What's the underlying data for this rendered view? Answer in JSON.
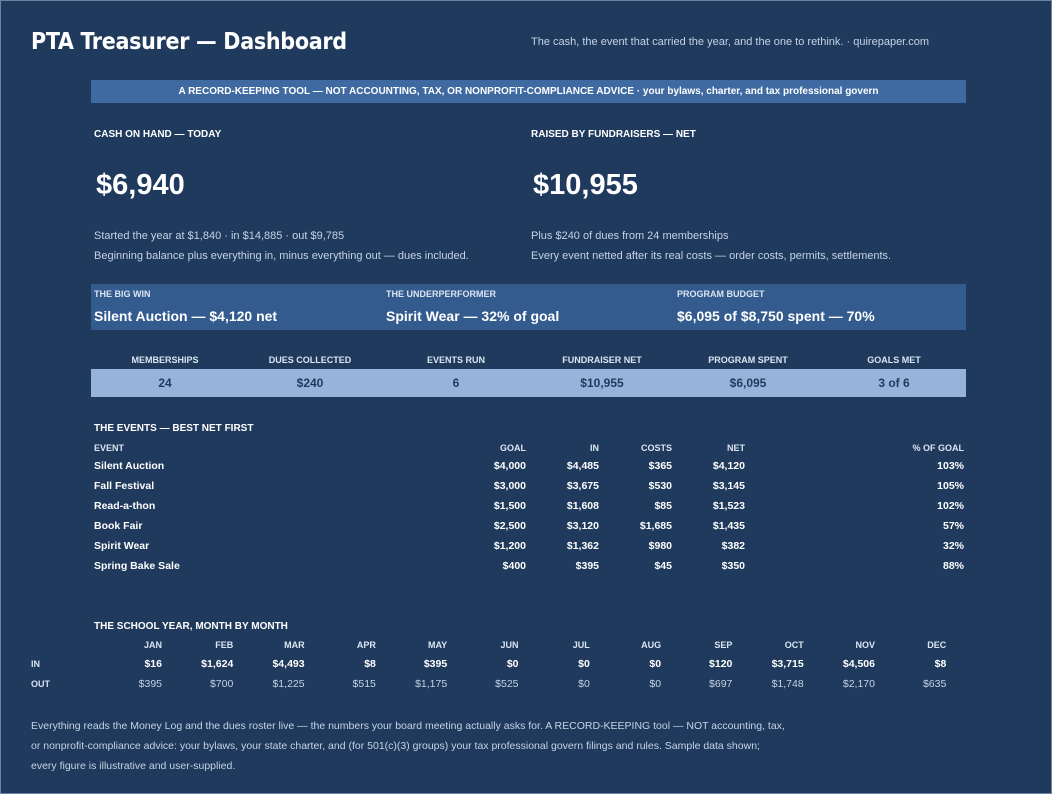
{
  "header": {
    "title": "PTA Treasurer — Dashboard",
    "tagline": "The cash, the event that carried the year, and the one to rethink.  ·  quirepaper.com"
  },
  "banner": {
    "text": "A RECORD-KEEPING TOOL — NOT ACCOUNTING, TAX, OR NONPROFIT-COMPLIANCE ADVICE  ·  your bylaws, charter, and tax professional govern"
  },
  "kpis": {
    "cash": {
      "label": "CASH ON HAND — TODAY",
      "value": "$6,940",
      "note1": "Started the year at $1,840  ·  in $14,885  ·  out $9,785",
      "note2": "Beginning balance plus everything in, minus everything out — dues included."
    },
    "raised": {
      "label": "RAISED BY FUNDRAISERS — NET",
      "value": "$10,955",
      "note1": "Plus $240 of dues from 24 memberships",
      "note2": "Every event netted after its real costs — order costs, permits, settlements."
    }
  },
  "highlights": [
    {
      "label": "THE BIG WIN",
      "value": "Silent Auction — $4,120 net"
    },
    {
      "label": "THE UNDERPERFORMER",
      "value": "Spirit Wear — 32% of goal"
    },
    {
      "label": "PROGRAM BUDGET",
      "value": "$6,095 of $8,750 spent — 70%"
    }
  ],
  "stats": [
    {
      "label": "MEMBERSHIPS",
      "value": "24"
    },
    {
      "label": "DUES COLLECTED",
      "value": "$240"
    },
    {
      "label": "EVENTS RUN",
      "value": "6"
    },
    {
      "label": "FUNDRAISER NET",
      "value": "$10,955"
    },
    {
      "label": "PROGRAM SPENT",
      "value": "$6,095"
    },
    {
      "label": "GOALS MET",
      "value": "3 of 6"
    }
  ],
  "events": {
    "title": "THE EVENTS — BEST NET FIRST",
    "columns": {
      "event": "EVENT",
      "goal": "GOAL",
      "in": "IN",
      "costs": "COSTS",
      "net": "NET",
      "pct": "% OF GOAL"
    },
    "rows": [
      {
        "event": "Silent Auction",
        "goal": "$4,000",
        "in": "$4,485",
        "costs": "$365",
        "net": "$4,120",
        "pct": "103%"
      },
      {
        "event": "Fall Festival",
        "goal": "$3,000",
        "in": "$3,675",
        "costs": "$530",
        "net": "$3,145",
        "pct": "105%"
      },
      {
        "event": "Read-a-thon",
        "goal": "$1,500",
        "in": "$1,608",
        "costs": "$85",
        "net": "$1,523",
        "pct": "102%"
      },
      {
        "event": "Book Fair",
        "goal": "$2,500",
        "in": "$3,120",
        "costs": "$1,685",
        "net": "$1,435",
        "pct": "57%"
      },
      {
        "event": "Spirit Wear",
        "goal": "$1,200",
        "in": "$1,362",
        "costs": "$980",
        "net": "$382",
        "pct": "32%"
      },
      {
        "event": "Spring Bake Sale",
        "goal": "$400",
        "in": "$395",
        "costs": "$45",
        "net": "$350",
        "pct": "88%"
      }
    ]
  },
  "months": {
    "title": "THE SCHOOL YEAR, MONTH BY MONTH",
    "in_label": "IN",
    "out_label": "OUT",
    "list": [
      {
        "m": "JAN",
        "in": "$16",
        "out": "$395"
      },
      {
        "m": "FEB",
        "in": "$1,624",
        "out": "$700"
      },
      {
        "m": "MAR",
        "in": "$4,493",
        "out": "$1,225"
      },
      {
        "m": "APR",
        "in": "$8",
        "out": "$515"
      },
      {
        "m": "MAY",
        "in": "$395",
        "out": "$1,175"
      },
      {
        "m": "JUN",
        "in": "$0",
        "out": "$525"
      },
      {
        "m": "JUL",
        "in": "$0",
        "out": "$0"
      },
      {
        "m": "AUG",
        "in": "$0",
        "out": "$0"
      },
      {
        "m": "SEP",
        "in": "$120",
        "out": "$697"
      },
      {
        "m": "OCT",
        "in": "$3,715",
        "out": "$1,748"
      },
      {
        "m": "NOV",
        "in": "$4,506",
        "out": "$2,170"
      },
      {
        "m": "DEC",
        "in": "$8",
        "out": "$635"
      }
    ]
  },
  "footer": {
    "line1": "Everything reads the Money Log and the dues roster live — the numbers your board meeting actually asks for. A RECORD-KEEPING tool — NOT accounting, tax,",
    "line2": "or nonprofit-compliance advice: your bylaws, your state charter, and (for 501(c)(3) groups) your tax professional govern filings and rules. Sample data shown;",
    "line3": "every figure is illustrative and user-supplied."
  }
}
